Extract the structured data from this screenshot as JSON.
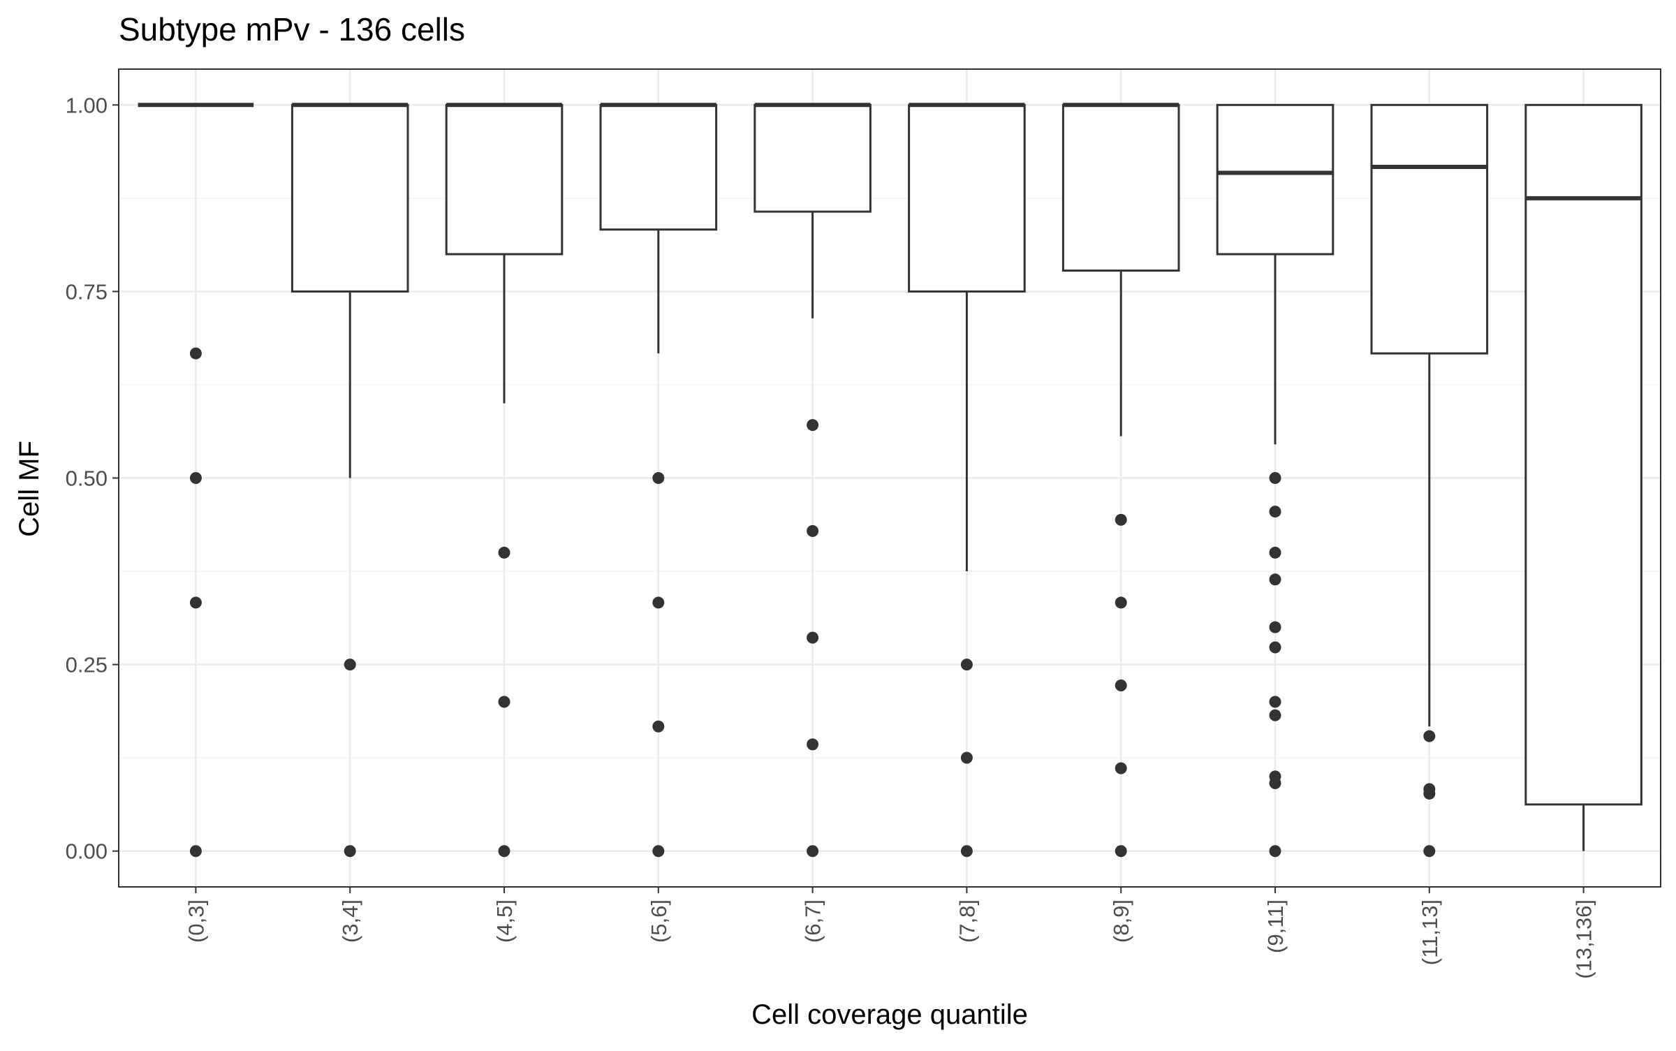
{
  "chart_data": {
    "type": "boxplot",
    "title": "Subtype mPv - 136 cells",
    "xlabel": "Cell coverage quantile",
    "ylabel": "Cell MF",
    "ylim": [
      -0.048,
      1.048
    ],
    "yticks": [
      0.0,
      0.25,
      0.5,
      0.75,
      1.0
    ],
    "ytick_labels": [
      "0.00",
      "0.25",
      "0.50",
      "0.75",
      "1.00"
    ],
    "grid": true,
    "categories": [
      "(0,3]",
      "(3,4]",
      "(4,5]",
      "(5,6]",
      "(6,7]",
      "(7,8]",
      "(8,9]",
      "(9,11]",
      "(11,13]",
      "(13,136]"
    ],
    "boxes": [
      {
        "category": "(0,3]",
        "whisker_low": 1.0,
        "q1": 1.0,
        "median": 1.0,
        "q3": 1.0,
        "whisker_high": 1.0,
        "outliers": [
          0.667,
          0.5,
          0.333,
          0.0
        ]
      },
      {
        "category": "(3,4]",
        "whisker_low": 0.5,
        "q1": 0.75,
        "median": 1.0,
        "q3": 1.0,
        "whisker_high": 1.0,
        "outliers": [
          0.25,
          0.0
        ]
      },
      {
        "category": "(4,5]",
        "whisker_low": 0.6,
        "q1": 0.8,
        "median": 1.0,
        "q3": 1.0,
        "whisker_high": 1.0,
        "outliers": [
          0.4,
          0.2,
          0.0
        ]
      },
      {
        "category": "(5,6]",
        "whisker_low": 0.667,
        "q1": 0.833,
        "median": 1.0,
        "q3": 1.0,
        "whisker_high": 1.0,
        "outliers": [
          0.5,
          0.333,
          0.167,
          0.0
        ]
      },
      {
        "category": "(6,7]",
        "whisker_low": 0.714,
        "q1": 0.857,
        "median": 1.0,
        "q3": 1.0,
        "whisker_high": 1.0,
        "outliers": [
          0.571,
          0.429,
          0.286,
          0.143,
          0.0
        ]
      },
      {
        "category": "(7,8]",
        "whisker_low": 0.375,
        "q1": 0.75,
        "median": 1.0,
        "q3": 1.0,
        "whisker_high": 1.0,
        "outliers": [
          0.25,
          0.125,
          0.0
        ]
      },
      {
        "category": "(8,9]",
        "whisker_low": 0.556,
        "q1": 0.778,
        "median": 1.0,
        "q3": 1.0,
        "whisker_high": 1.0,
        "outliers": [
          0.444,
          0.333,
          0.222,
          0.111,
          0.0
        ]
      },
      {
        "category": "(9,11]",
        "whisker_low": 0.545,
        "q1": 0.8,
        "median": 0.909,
        "q3": 1.0,
        "whisker_high": 1.0,
        "outliers": [
          0.5,
          0.455,
          0.4,
          0.364,
          0.3,
          0.273,
          0.2,
          0.182,
          0.1,
          0.091,
          0.0
        ]
      },
      {
        "category": "(11,13]",
        "whisker_low": 0.167,
        "q1": 0.667,
        "median": 0.917,
        "q3": 1.0,
        "whisker_high": 1.0,
        "outliers": [
          0.154,
          0.083,
          0.077,
          0.0
        ]
      },
      {
        "category": "(13,136]",
        "whisker_low": 0.0,
        "q1": 0.0625,
        "median": 0.875,
        "q3": 1.0,
        "whisker_high": 1.0,
        "outliers": []
      }
    ],
    "colors": {
      "background": "#ffffff",
      "panel_border": "#333333",
      "grid_major": "#ebebeb",
      "grid_minor": "#f5f5f5",
      "box": "#333333",
      "tick_text": "#4d4d4d",
      "title_text": "#000000"
    }
  }
}
